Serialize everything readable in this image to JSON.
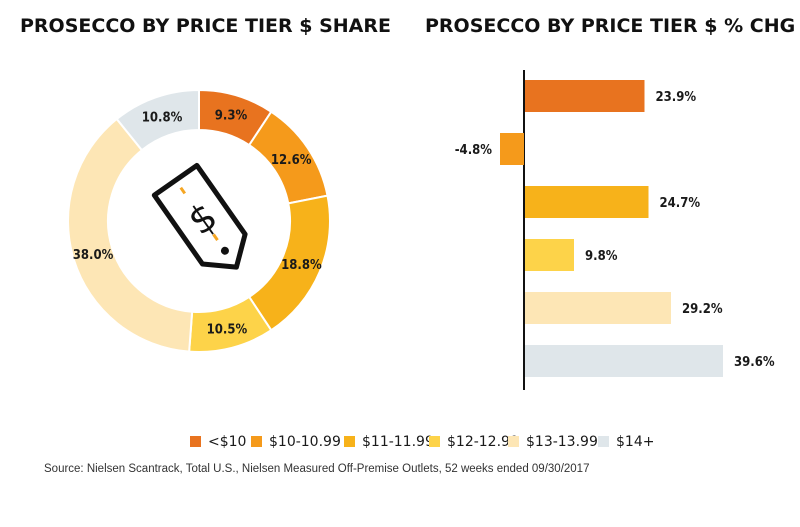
{
  "colors": {
    "tier": [
      "#e8731f",
      "#f59a1b",
      "#f7b21a",
      "#fdd349",
      "#fde6b5",
      "#dfe6ea"
    ],
    "icon": "#111111",
    "dash": "#f5a623"
  },
  "icon_name": "price-tag-icon",
  "icon_symbol": "$",
  "chart_data": [
    {
      "type": "pie",
      "title": "PROSECCO BY PRICE TIER $ SHARE",
      "categories": [
        "<$10",
        "$10-10.99",
        "$11-11.99",
        "$12-12.99",
        "$13-13.99",
        "$14+"
      ],
      "values": [
        9.3,
        12.6,
        18.8,
        10.5,
        38.0,
        10.8
      ],
      "labels": [
        "9.3%",
        "12.6%",
        "18.8%",
        "10.5%",
        "38.0%",
        "10.8%"
      ]
    },
    {
      "type": "bar",
      "orientation": "horizontal",
      "title": "PROSECCO BY PRICE TIER $ % CHG VS. YA",
      "categories": [
        "<$10",
        "$10-10.99",
        "$11-11.99",
        "$12-12.99",
        "$13-13.99",
        "$14+"
      ],
      "values": [
        23.9,
        -4.8,
        24.7,
        9.8,
        29.2,
        39.6
      ],
      "labels": [
        "23.9%",
        "-4.8%",
        "24.7%",
        "9.8%",
        "29.2%",
        "39.6%"
      ]
    }
  ],
  "legend": {
    "items": [
      "<$10",
      "$10-10.99",
      "$11-11.99",
      "$12-12.99",
      "$13-13.99",
      "$14+"
    ],
    "placement": "bottom"
  },
  "source": "Source: Nielsen Scantrack, Total U.S., Nielsen Measured Off-Premise Outlets, 52 weeks ended 09/30/2017"
}
